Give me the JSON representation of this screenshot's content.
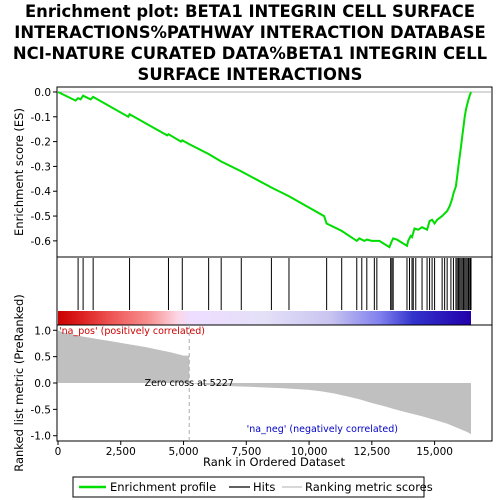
{
  "chart_data": {
    "type": "line",
    "title_lines": [
      "Enrichment plot: BETA1 INTEGRIN CELL SURFACE",
      "INTERACTIONS%PATHWAY INTERACTION DATABASE",
      "NCI-NATURE CURATED DATA%BETA1 INTEGRIN CELL",
      "SURFACE INTERACTIONS"
    ],
    "top_panel": {
      "ylabel": "Enrichment score (ES)",
      "ylim": [
        -0.665,
        0.02
      ],
      "yticks": [
        0.0,
        -0.1,
        -0.2,
        -0.3,
        -0.4,
        -0.5,
        -0.6
      ],
      "ytick_labels": [
        "0.0",
        "-0.1",
        "-0.2",
        "-0.3",
        "-0.4",
        "-0.5",
        "-0.6"
      ],
      "es_profile": [
        [
          0,
          0.0
        ],
        [
          700,
          -0.035
        ],
        [
          800,
          -0.025
        ],
        [
          900,
          -0.03
        ],
        [
          1000,
          -0.015
        ],
        [
          1300,
          -0.03
        ],
        [
          1400,
          -0.02
        ],
        [
          2800,
          -0.1
        ],
        [
          2850,
          -0.09
        ],
        [
          4350,
          -0.175
        ],
        [
          4400,
          -0.17
        ],
        [
          4900,
          -0.2
        ],
        [
          4950,
          -0.195
        ],
        [
          5227,
          -0.21
        ],
        [
          6000,
          -0.25
        ],
        [
          6500,
          -0.28
        ],
        [
          7300,
          -0.32
        ],
        [
          8500,
          -0.385
        ],
        [
          9200,
          -0.42
        ],
        [
          10600,
          -0.5
        ],
        [
          10700,
          -0.53
        ],
        [
          11300,
          -0.56
        ],
        [
          11900,
          -0.6
        ],
        [
          12000,
          -0.59
        ],
        [
          12200,
          -0.6
        ],
        [
          12300,
          -0.595
        ],
        [
          12500,
          -0.6
        ],
        [
          12800,
          -0.6
        ],
        [
          13200,
          -0.625
        ],
        [
          13300,
          -0.6
        ],
        [
          13350,
          -0.59
        ],
        [
          13500,
          -0.595
        ],
        [
          13900,
          -0.62
        ],
        [
          13950,
          -0.6
        ],
        [
          14050,
          -0.58
        ],
        [
          14100,
          -0.585
        ],
        [
          14200,
          -0.55
        ],
        [
          14350,
          -0.555
        ],
        [
          14500,
          -0.545
        ],
        [
          14700,
          -0.555
        ],
        [
          14800,
          -0.52
        ],
        [
          14900,
          -0.515
        ],
        [
          15000,
          -0.53
        ],
        [
          15100,
          -0.515
        ],
        [
          15300,
          -0.5
        ],
        [
          15400,
          -0.49
        ],
        [
          15500,
          -0.48
        ],
        [
          15600,
          -0.46
        ],
        [
          15700,
          -0.43
        ],
        [
          15750,
          -0.41
        ],
        [
          15850,
          -0.38
        ],
        [
          15900,
          -0.34
        ],
        [
          15950,
          -0.3
        ],
        [
          16000,
          -0.26
        ],
        [
          16050,
          -0.22
        ],
        [
          16100,
          -0.18
        ],
        [
          16150,
          -0.14
        ],
        [
          16200,
          -0.1
        ],
        [
          16250,
          -0.07
        ],
        [
          16300,
          -0.05
        ],
        [
          16350,
          -0.03
        ],
        [
          16400,
          -0.015
        ],
        [
          16450,
          0.0
        ]
      ],
      "hits": [
        800,
        1000,
        1400,
        2850,
        4400,
        4950,
        6000,
        6500,
        7300,
        8500,
        9200,
        10700,
        11300,
        11900,
        12100,
        12300,
        12600,
        12700,
        13250,
        13300,
        13350,
        13900,
        14000,
        14100,
        14150,
        14250,
        14500,
        14700,
        14800,
        14900,
        15000,
        15300,
        15400,
        15500,
        15650,
        15750,
        15850,
        15900,
        15950,
        16000,
        16050,
        16100,
        16150,
        16200,
        16250,
        16300,
        16350,
        16400,
        16420,
        16450
      ]
    },
    "bottom_panel": {
      "ylabel": "Ranked list metric (PreRanked)",
      "xlabel": "Rank in Ordered Dataset",
      "xlim": [
        0,
        16450
      ],
      "ylim": [
        -1.1,
        1.1
      ],
      "xticks": [
        0,
        2500,
        5000,
        7500,
        10000,
        12500,
        15000
      ],
      "xtick_labels": [
        "0",
        "2,500",
        "5,000",
        "7,500",
        "10,000",
        "12,500",
        "15,000"
      ],
      "yticks": [
        1.0,
        0.5,
        0.0,
        -0.5,
        -1.0
      ],
      "ytick_labels": [
        "1.0",
        "0.5",
        "0.0",
        "-0.5",
        "-1.0"
      ],
      "metric_profile": [
        [
          0,
          1.0
        ],
        [
          200,
          0.96
        ],
        [
          600,
          0.92
        ],
        [
          1000,
          0.88
        ],
        [
          1500,
          0.84
        ],
        [
          2000,
          0.8
        ],
        [
          2500,
          0.76
        ],
        [
          3000,
          0.72
        ],
        [
          3500,
          0.68
        ],
        [
          4000,
          0.63
        ],
        [
          4500,
          0.58
        ],
        [
          5000,
          0.52
        ],
        [
          5227,
          0.0
        ],
        [
          6000,
          -0.04
        ],
        [
          7000,
          -0.06
        ],
        [
          8000,
          -0.08
        ],
        [
          9000,
          -0.1
        ],
        [
          10000,
          -0.13
        ],
        [
          10500,
          -0.16
        ],
        [
          11000,
          -0.2
        ],
        [
          11500,
          -0.25
        ],
        [
          12000,
          -0.31
        ],
        [
          12500,
          -0.38
        ],
        [
          13000,
          -0.44
        ],
        [
          13500,
          -0.51
        ],
        [
          14000,
          -0.57
        ],
        [
          14500,
          -0.63
        ],
        [
          15000,
          -0.7
        ],
        [
          15500,
          -0.77
        ],
        [
          16000,
          -0.87
        ],
        [
          16300,
          -0.93
        ],
        [
          16450,
          -0.97
        ]
      ],
      "zero_cross_label": "Zero cross at 5227",
      "zero_cross": 5227,
      "pos_label": "'na_pos' (positively correlated)",
      "neg_label": "'na_neg' (negatively correlated)"
    },
    "colors": {
      "es_line": "#00dd00",
      "hits": "#000000",
      "metric_fill": "#c0c0c0",
      "pos_label": "#cc0000",
      "neg_label": "#0000cc",
      "heat_red": "#cc0000",
      "heat_blue": "#2200bb"
    },
    "legend": {
      "position": "bottom",
      "items": [
        "Enrichment profile",
        "Hits",
        "Ranking metric scores"
      ]
    }
  }
}
